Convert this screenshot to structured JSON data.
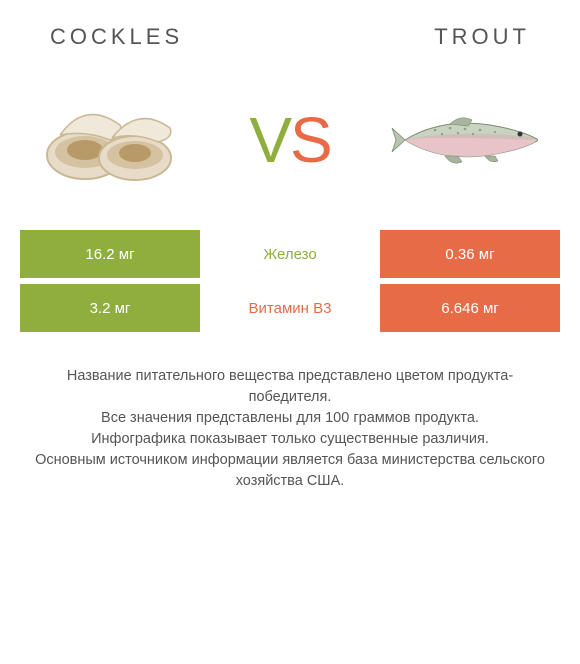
{
  "type": "infographic",
  "background_color": "#ffffff",
  "text_color": "#555555",
  "header": {
    "left_title": "COCKLES",
    "right_title": "TROUT",
    "title_fontsize": 22,
    "title_letterspacing": 4,
    "title_color": "#555555"
  },
  "vs": {
    "v_text": "V",
    "s_text": "S",
    "v_color": "#8fae3e",
    "s_color": "#e76b47",
    "fontsize": 64
  },
  "colors": {
    "left_product": "#8fae3e",
    "right_product": "#e76b47",
    "row_text": "#ffffff",
    "mid_text": "#666666"
  },
  "nutrient_rows": [
    {
      "left_value": "16.2 мг",
      "name": "Железо",
      "right_value": "0.36 мг",
      "winner": "left",
      "name_color": "#8fae3e"
    },
    {
      "left_value": "3.2 мг",
      "name": "Витамин B3",
      "right_value": "6.646 мг",
      "winner": "right",
      "name_color": "#e76b47"
    }
  ],
  "footer": {
    "line1": "Название питательного вещества представлено цветом продукта-победителя.",
    "line2": "Все значения представлены для 100 граммов продукта.",
    "line3": "Инфографика показывает только существенные различия.",
    "line4": "Основным источником информации является база министерства сельского хозяйства США.",
    "fontsize": 14.5,
    "color": "#555555"
  }
}
